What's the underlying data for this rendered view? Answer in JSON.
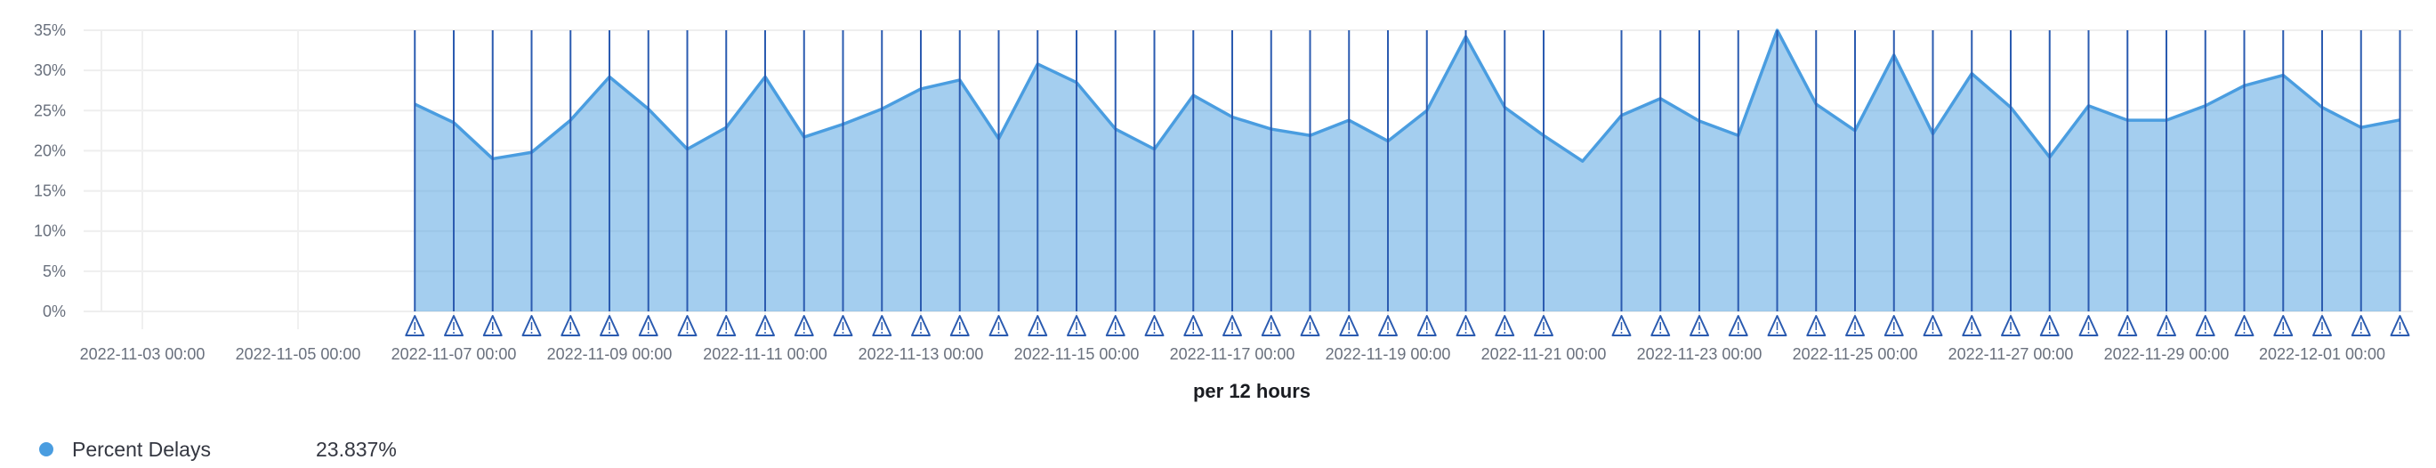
{
  "chart_data": {
    "type": "area",
    "xlabel": "per 12 hours",
    "ylabel": "",
    "ylim": [
      0,
      35
    ],
    "yticks": [
      "0%",
      "5%",
      "10%",
      "15%",
      "20%",
      "25%",
      "30%",
      "35%"
    ],
    "ytick_values": [
      0,
      5,
      10,
      15,
      20,
      25,
      30,
      35
    ],
    "xticks": [
      "2022-11-03 00:00",
      "2022-11-05 00:00",
      "2022-11-07 00:00",
      "2022-11-09 00:00",
      "2022-11-11 00:00",
      "2022-11-13 00:00",
      "2022-11-15 00:00",
      "2022-11-17 00:00",
      "2022-11-19 00:00",
      "2022-11-21 00:00",
      "2022-11-23 00:00",
      "2022-11-25 00:00",
      "2022-11-27 00:00",
      "2022-11-29 00:00",
      "2022-12-01 00:00"
    ],
    "x_start": "2022-11-06 12:00",
    "interval_hours": 12,
    "grid": true,
    "series": [
      {
        "name": "Percent Delays",
        "color": "#4a9de0",
        "values": [
          25.8,
          23.5,
          19.0,
          19.8,
          23.8,
          29.2,
          25.2,
          20.2,
          22.9,
          29.2,
          21.7,
          23.3,
          25.2,
          27.7,
          28.8,
          21.5,
          30.8,
          28.5,
          22.7,
          20.2,
          26.9,
          24.2,
          22.7,
          21.9,
          23.8,
          21.2,
          25.0,
          34.2,
          25.4,
          21.9,
          18.7,
          24.4,
          26.5,
          23.7,
          21.9,
          35.0,
          25.8,
          22.5,
          31.9,
          22.1,
          29.6,
          25.4,
          19.2,
          25.6,
          23.8,
          23.8,
          25.6,
          28.1,
          29.4,
          25.4,
          22.9,
          23.837
        ]
      }
    ],
    "annotations": {
      "icon": "warning-triangle-icon",
      "color": "#2b5bb0",
      "missing_index": 30
    },
    "legend": {
      "placement": "bottom-left",
      "label": "Percent Delays",
      "value": "23.837%"
    }
  }
}
